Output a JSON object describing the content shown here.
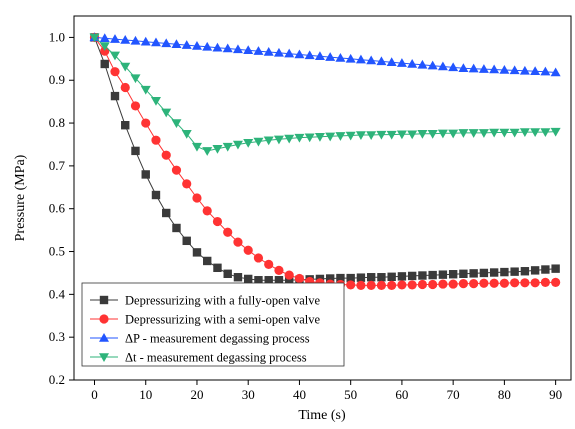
{
  "chart_data": {
    "type": "line",
    "title": "",
    "xlabel": "Time (s)",
    "ylabel": "Pressure (MPa)",
    "xlim": [
      -4,
      93
    ],
    "ylim": [
      0.2,
      1.05
    ],
    "xticks": [
      0,
      10,
      20,
      30,
      40,
      50,
      60,
      70,
      80,
      90
    ],
    "yticks": [
      0.2,
      0.3,
      0.4,
      0.5,
      0.6,
      0.7,
      0.8,
      0.9,
      1.0
    ],
    "xtick_labels": [
      "0",
      "10",
      "20",
      "30",
      "40",
      "50",
      "60",
      "70",
      "80",
      "90"
    ],
    "ytick_labels": [
      "0.2",
      "0.3",
      "0.4",
      "0.5",
      "0.6",
      "0.7",
      "0.8",
      "0.9",
      "1.0"
    ],
    "grid": false,
    "legend_position": "bottom-left",
    "series": [
      {
        "name": "Depressurizing with a fully-open valve",
        "marker": "square",
        "color": "#3a3a3a",
        "x": [
          0,
          2,
          4,
          6,
          8,
          10,
          12,
          14,
          16,
          18,
          20,
          22,
          24,
          26,
          28,
          30,
          32,
          34,
          36,
          38,
          40,
          42,
          44,
          46,
          48,
          50,
          52,
          54,
          56,
          58,
          60,
          62,
          64,
          66,
          68,
          70,
          72,
          74,
          76,
          78,
          80,
          82,
          84,
          86,
          88,
          90
        ],
        "y": [
          1.0,
          0.938,
          0.863,
          0.795,
          0.735,
          0.68,
          0.632,
          0.59,
          0.555,
          0.525,
          0.498,
          0.478,
          0.462,
          0.448,
          0.44,
          0.436,
          0.433,
          0.433,
          0.433,
          0.433,
          0.434,
          0.435,
          0.436,
          0.437,
          0.438,
          0.438,
          0.439,
          0.44,
          0.44,
          0.441,
          0.442,
          0.443,
          0.444,
          0.445,
          0.446,
          0.447,
          0.448,
          0.449,
          0.45,
          0.451,
          0.452,
          0.453,
          0.454,
          0.456,
          0.458,
          0.46
        ]
      },
      {
        "name": "Depressurizing with a semi-open valve",
        "marker": "circle",
        "color": "#ff3333",
        "x": [
          0,
          2,
          4,
          6,
          8,
          10,
          12,
          14,
          16,
          18,
          20,
          22,
          24,
          26,
          28,
          30,
          32,
          34,
          36,
          38,
          40,
          42,
          44,
          46,
          48,
          50,
          52,
          54,
          56,
          58,
          60,
          62,
          64,
          66,
          68,
          70,
          72,
          74,
          76,
          78,
          80,
          82,
          84,
          86,
          88,
          90
        ],
        "y": [
          1.0,
          0.968,
          0.92,
          0.883,
          0.84,
          0.8,
          0.76,
          0.725,
          0.69,
          0.658,
          0.625,
          0.595,
          0.57,
          0.545,
          0.522,
          0.503,
          0.485,
          0.47,
          0.456,
          0.445,
          0.437,
          0.43,
          0.427,
          0.424,
          0.423,
          0.422,
          0.421,
          0.421,
          0.421,
          0.421,
          0.422,
          0.422,
          0.423,
          0.423,
          0.424,
          0.424,
          0.425,
          0.425,
          0.426,
          0.426,
          0.426,
          0.427,
          0.427,
          0.427,
          0.428,
          0.428
        ]
      },
      {
        "name": "ΔP - measurement degassing process",
        "marker": "triangle-up",
        "color": "#2255ff",
        "x": [
          0,
          2,
          4,
          6,
          8,
          10,
          12,
          14,
          16,
          18,
          20,
          22,
          24,
          26,
          28,
          30,
          32,
          34,
          36,
          38,
          40,
          42,
          44,
          46,
          48,
          50,
          52,
          54,
          56,
          58,
          60,
          62,
          64,
          66,
          68,
          70,
          72,
          74,
          76,
          78,
          80,
          82,
          84,
          86,
          88,
          90
        ],
        "y": [
          1.0,
          0.998,
          0.996,
          0.994,
          0.992,
          0.99,
          0.988,
          0.986,
          0.984,
          0.982,
          0.98,
          0.978,
          0.976,
          0.974,
          0.972,
          0.97,
          0.968,
          0.966,
          0.964,
          0.962,
          0.96,
          0.958,
          0.956,
          0.954,
          0.952,
          0.95,
          0.948,
          0.946,
          0.944,
          0.942,
          0.94,
          0.938,
          0.936,
          0.934,
          0.932,
          0.93,
          0.928,
          0.927,
          0.926,
          0.925,
          0.924,
          0.923,
          0.922,
          0.921,
          0.92,
          0.918
        ]
      },
      {
        "name": "Δt - measurement degassing process",
        "marker": "triangle-down",
        "color": "#2db37a",
        "x": [
          0,
          2,
          4,
          6,
          8,
          10,
          12,
          14,
          16,
          18,
          20,
          22,
          24,
          26,
          28,
          30,
          32,
          34,
          36,
          38,
          40,
          42,
          44,
          46,
          48,
          50,
          52,
          54,
          56,
          58,
          60,
          62,
          64,
          66,
          68,
          70,
          72,
          74,
          76,
          78,
          80,
          82,
          84,
          86,
          88,
          90
        ],
        "y": [
          1.0,
          0.98,
          0.958,
          0.932,
          0.905,
          0.878,
          0.852,
          0.825,
          0.8,
          0.775,
          0.745,
          0.735,
          0.74,
          0.745,
          0.75,
          0.754,
          0.757,
          0.76,
          0.762,
          0.764,
          0.766,
          0.767,
          0.768,
          0.769,
          0.77,
          0.771,
          0.772,
          0.772,
          0.773,
          0.773,
          0.774,
          0.774,
          0.775,
          0.775,
          0.776,
          0.776,
          0.777,
          0.777,
          0.777,
          0.778,
          0.778,
          0.778,
          0.779,
          0.779,
          0.779,
          0.78
        ]
      }
    ]
  }
}
